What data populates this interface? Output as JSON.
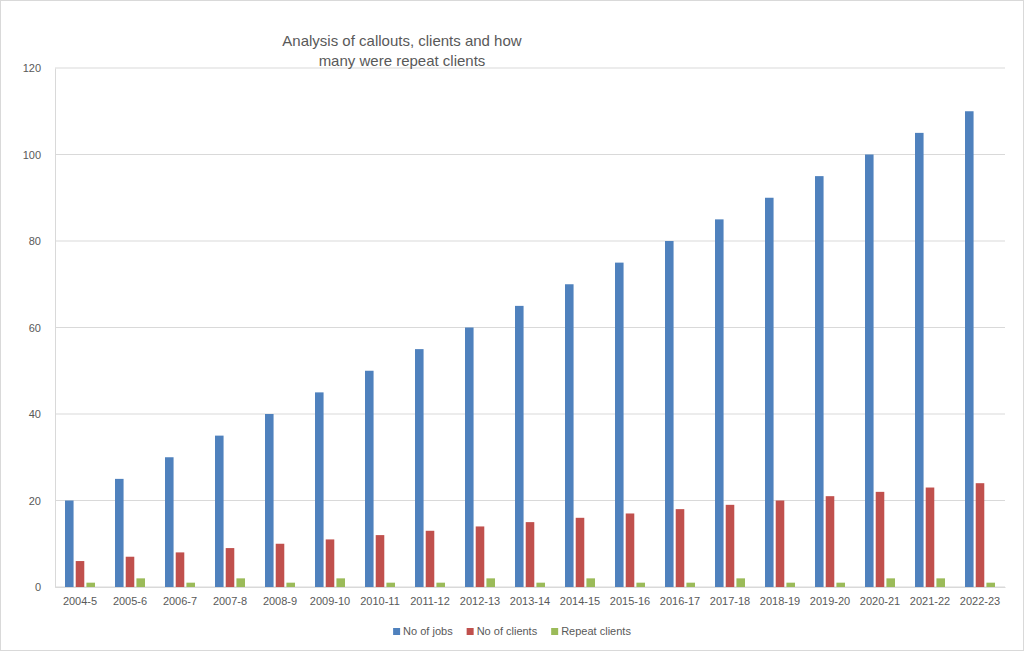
{
  "chart_data": {
    "type": "bar",
    "title": "Analysis of callouts, clients and how many were repeat clients",
    "categories": [
      "2004-5",
      "2005-6",
      "2006-7",
      "2007-8",
      "2008-9",
      "2009-10",
      "2010-11",
      "2011-12",
      "2012-13",
      "2013-14",
      "2014-15",
      "2015-16",
      "2016-17",
      "2017-18",
      "2018-19",
      "2019-20",
      "2020-21",
      "2021-22",
      "2022-23"
    ],
    "series": [
      {
        "name": "No of jobs",
        "color": "#4f81bd",
        "values": [
          20,
          25,
          30,
          35,
          40,
          45,
          50,
          55,
          60,
          65,
          70,
          75,
          80,
          85,
          90,
          95,
          100,
          105,
          110
        ]
      },
      {
        "name": "No of clients",
        "color": "#c0504d",
        "values": [
          6,
          7,
          8,
          9,
          10,
          11,
          12,
          13,
          14,
          15,
          16,
          17,
          18,
          19,
          20,
          21,
          22,
          23,
          24
        ]
      },
      {
        "name": "Repeat clients",
        "color": "#9bbb59",
        "values": [
          1,
          2,
          1,
          2,
          1,
          2,
          1,
          1,
          2,
          1,
          2,
          1,
          1,
          2,
          1,
          1,
          2,
          2,
          1
        ]
      }
    ],
    "ylim": [
      0,
      120
    ],
    "yticks": [
      0,
      20,
      40,
      60,
      80,
      100,
      120
    ],
    "grid": true,
    "legend": "bottom"
  }
}
